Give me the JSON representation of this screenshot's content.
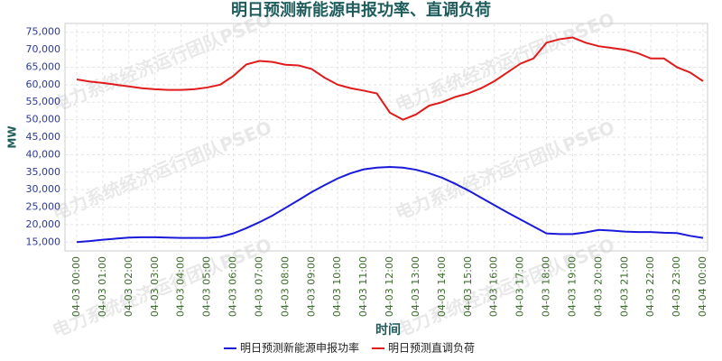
{
  "chart_data": {
    "type": "line",
    "title": "明日预测新能源申报功率、直调负荷",
    "xlabel": "时间",
    "ylabel": "MW",
    "watermark": "电力系统经济运行团队PSEO",
    "categories": [
      "04-03 00:00",
      null,
      "04-03 01:00",
      null,
      "04-03 02:00",
      null,
      "04-03 03:00",
      null,
      "04-03 04:00",
      null,
      "04-03 05:00",
      null,
      "04-03 06:00",
      null,
      "04-03 07:00",
      null,
      "04-03 08:00",
      null,
      "04-03 09:00",
      null,
      "04-03 10:00",
      null,
      "04-03 11:00",
      null,
      "04-03 12:00",
      null,
      "04-03 13:00",
      null,
      "04-03 14:00",
      null,
      "04-03 15:00",
      null,
      "04-03 16:00",
      null,
      "04-03 17:00",
      null,
      "04-03 18:00",
      null,
      "04-03 19:00",
      null,
      "04-03 20:00",
      null,
      "04-03 21:00",
      null,
      "04-03 22:00",
      null,
      "04-03 23:00",
      null,
      "04-04 00:00"
    ],
    "series": [
      {
        "name": "明日预测新能源申报功率",
        "color": "#1a1adb",
        "values": [
          15000,
          15300,
          15700,
          16000,
          16300,
          16400,
          16400,
          16300,
          16200,
          16200,
          16200,
          16500,
          17500,
          19000,
          20700,
          22600,
          24800,
          27000,
          29300,
          31300,
          33200,
          34700,
          35800,
          36300,
          36500,
          36300,
          35700,
          34700,
          33400,
          31700,
          29800,
          27700,
          25600,
          23500,
          21500,
          19500,
          17500,
          17300,
          17300,
          17800,
          18500,
          18300,
          18000,
          17900,
          17900,
          17700,
          17600,
          16800,
          16200
        ]
      },
      {
        "name": "明日预测直调负荷",
        "color": "#e01b1b",
        "values": [
          61500,
          60900,
          60500,
          60000,
          59500,
          59000,
          58700,
          58500,
          58500,
          58700,
          59200,
          60000,
          62500,
          65800,
          66800,
          66500,
          65700,
          65500,
          64500,
          62000,
          60000,
          59000,
          58300,
          57500,
          52000,
          50000,
          51500,
          54000,
          55000,
          56500,
          57500,
          59000,
          61000,
          63500,
          66000,
          67500,
          72000,
          73000,
          73500,
          72000,
          71000,
          70500,
          70000,
          69000,
          67500,
          67500,
          65000,
          63500,
          61000
        ]
      }
    ],
    "ylim": [
      12500,
      77500
    ],
    "yticks": [
      {
        "value": 15000,
        "label": "15,000"
      },
      {
        "value": 20000,
        "label": "20,000"
      },
      {
        "value": 25000,
        "label": "25,000"
      },
      {
        "value": 30000,
        "label": "30,000"
      },
      {
        "value": 35000,
        "label": "35,000"
      },
      {
        "value": 40000,
        "label": "40,000"
      },
      {
        "value": 45000,
        "label": "45,000"
      },
      {
        "value": 50000,
        "label": "50,000"
      },
      {
        "value": 55000,
        "label": "55,000"
      },
      {
        "value": 60000,
        "label": "60,000"
      },
      {
        "value": 65000,
        "label": "65,000"
      },
      {
        "value": 70000,
        "label": "70,000"
      },
      {
        "value": 75000,
        "label": "75,000"
      }
    ],
    "grid": true
  }
}
